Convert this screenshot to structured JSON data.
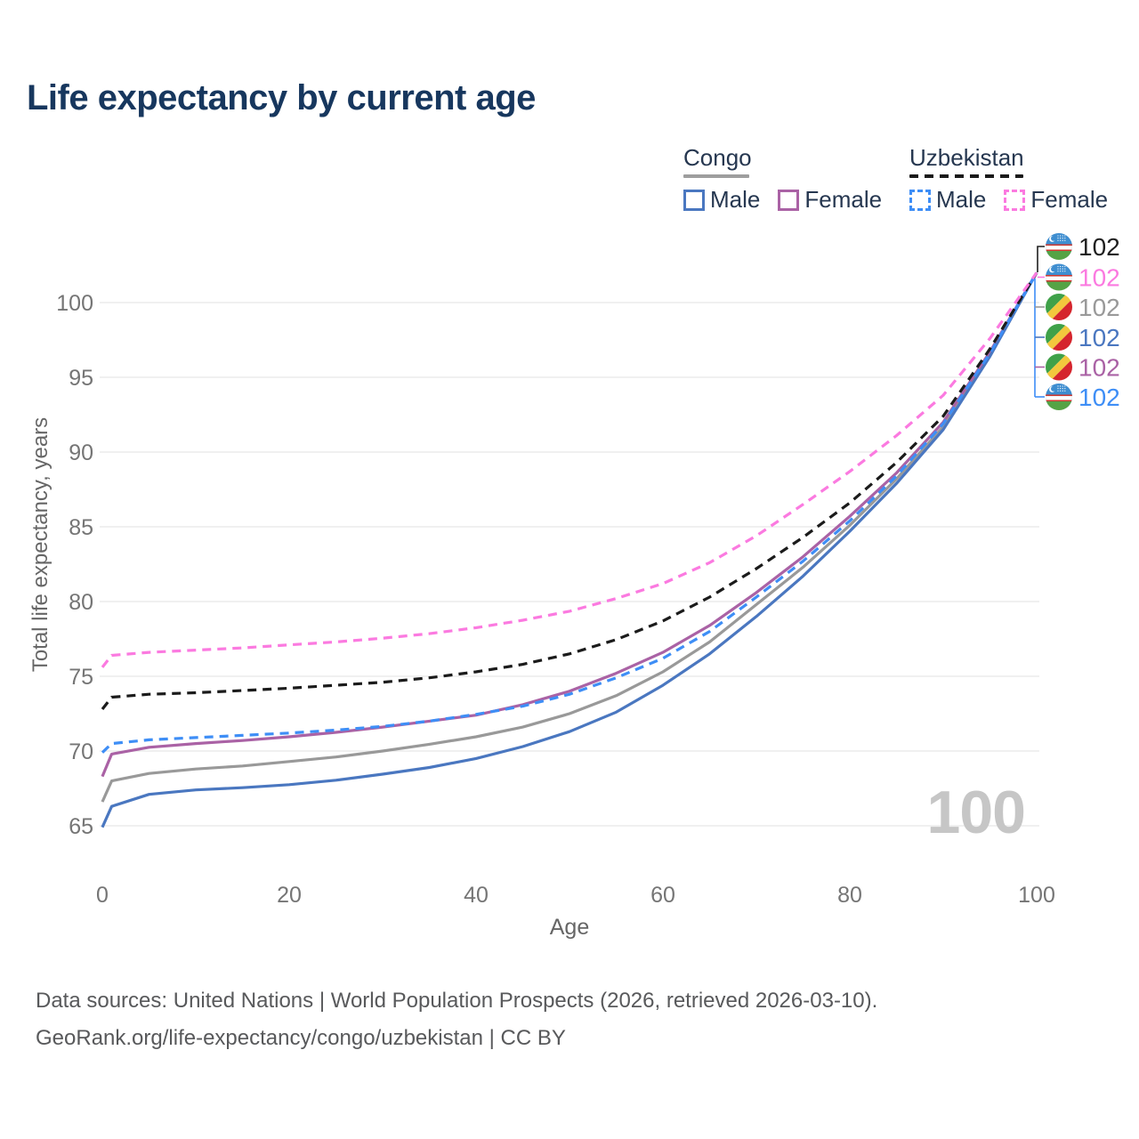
{
  "title": "Life expectancy by current age",
  "legend": {
    "groups": [
      {
        "name": "Congo",
        "line_style": "solid",
        "underline_color": "#9e9e9e",
        "items": [
          {
            "label": "Male",
            "color": "#4a77c0"
          },
          {
            "label": "Female",
            "color": "#aa62a5"
          }
        ]
      },
      {
        "name": "Uzbekistan",
        "line_style": "dashed",
        "underline_color": "#1a1a1a",
        "items": [
          {
            "label": "Male",
            "color": "#3e8ef6"
          },
          {
            "label": "Female",
            "color": "#fb7ae0"
          }
        ]
      }
    ]
  },
  "watermark": "100",
  "footer": {
    "line1": "Data sources: United Nations | World Population Prospects (2026, retrieved 2026-03-10).",
    "line2": "GeoRank.org/life-expectancy/congo/uzbekistan | CC BY"
  },
  "flags": {
    "uz": {
      "icon": "uzbekistan-flag-icon",
      "blue": "#3f8ed0",
      "white": "#ffffff",
      "red": "#d2362c",
      "green": "#55a345"
    },
    "cg": {
      "icon": "congo-flag-icon",
      "green": "#3fa149",
      "yellow": "#f2c83d",
      "red": "#d5252d"
    }
  },
  "chart_data": {
    "type": "line",
    "title": "Life expectancy by current age",
    "xlabel": "Age",
    "ylabel": "Total life expectancy, years",
    "xlim": [
      0,
      100
    ],
    "ylim": [
      65,
      102
    ],
    "x_ticks": [
      0,
      20,
      40,
      60,
      80,
      100
    ],
    "y_ticks": [
      65,
      70,
      75,
      80,
      85,
      90,
      95,
      100
    ],
    "grid": "horizontal-only",
    "grid_color": "#e8e8e8",
    "tick_color": "#757575",
    "x": [
      0,
      1,
      5,
      10,
      15,
      20,
      25,
      30,
      35,
      40,
      45,
      50,
      55,
      60,
      65,
      70,
      75,
      80,
      85,
      90,
      95,
      100
    ],
    "series": [
      {
        "name": "Congo Both sexes",
        "country": "Congo",
        "sex": "Both sexes",
        "color": "#999999",
        "line_style": "solid",
        "flag": "cg",
        "values": [
          66.6,
          68.0,
          68.5,
          68.8,
          69.0,
          69.3,
          69.6,
          70.0,
          70.45,
          70.95,
          71.6,
          72.5,
          73.7,
          75.3,
          77.3,
          79.8,
          82.3,
          85.1,
          88.2,
          91.7,
          96.5,
          102
        ]
      },
      {
        "name": "Congo Female",
        "country": "Congo",
        "sex": "Female",
        "color": "#aa62a5",
        "line_style": "solid",
        "flag": "cg",
        "values": [
          68.3,
          69.8,
          70.25,
          70.5,
          70.7,
          70.95,
          71.25,
          71.6,
          72.0,
          72.4,
          73.1,
          74.0,
          75.2,
          76.6,
          78.4,
          80.6,
          83.0,
          85.7,
          88.6,
          92.0,
          96.7,
          102
        ]
      },
      {
        "name": "Congo Male",
        "country": "Congo",
        "sex": "Male",
        "color": "#4a77c0",
        "line_style": "solid",
        "flag": "cg",
        "values": [
          64.9,
          66.3,
          67.1,
          67.4,
          67.55,
          67.75,
          68.05,
          68.45,
          68.9,
          69.5,
          70.3,
          71.3,
          72.6,
          74.4,
          76.5,
          79.0,
          81.7,
          84.7,
          87.9,
          91.5,
          96.4,
          102
        ]
      },
      {
        "name": "Uzbekistan Male",
        "country": "Uzbekistan",
        "sex": "Male",
        "color": "#3e8ef6",
        "line_style": "dashed",
        "flag": "uz",
        "values": [
          69.9,
          70.5,
          70.75,
          70.9,
          71.05,
          71.2,
          71.4,
          71.65,
          72.0,
          72.45,
          73.0,
          73.8,
          74.9,
          76.2,
          78.0,
          80.3,
          82.7,
          85.4,
          88.4,
          91.9,
          96.6,
          102
        ]
      },
      {
        "name": "Uzbekistan Both sexes",
        "country": "Uzbekistan",
        "sex": "Both sexes",
        "color": "#1b1b1b",
        "line_style": "dashed",
        "flag": "uz",
        "values": [
          72.8,
          73.6,
          73.8,
          73.9,
          74.05,
          74.2,
          74.4,
          74.6,
          74.9,
          75.3,
          75.8,
          76.5,
          77.45,
          78.7,
          80.3,
          82.2,
          84.3,
          86.6,
          89.3,
          92.4,
          96.9,
          102
        ]
      },
      {
        "name": "Uzbekistan Female",
        "country": "Uzbekistan",
        "sex": "Female",
        "color": "#fb7ae0",
        "line_style": "dashed",
        "flag": "uz",
        "values": [
          75.6,
          76.4,
          76.6,
          76.75,
          76.9,
          77.1,
          77.3,
          77.55,
          77.85,
          78.25,
          78.75,
          79.35,
          80.2,
          81.2,
          82.6,
          84.4,
          86.5,
          88.7,
          91.1,
          93.8,
          97.6,
          102
        ]
      }
    ],
    "end_labels": [
      {
        "series": "Uzbekistan Both sexes",
        "flag": "uz",
        "icon": "uzbekistan-flag-icon",
        "text": "102",
        "color": "#1f1f1f"
      },
      {
        "series": "Uzbekistan Female",
        "flag": "uz",
        "icon": "uzbekistan-flag-icon",
        "text": "102",
        "color": "#fb7ae0"
      },
      {
        "series": "Congo Both sexes",
        "flag": "cg",
        "icon": "congo-flag-icon",
        "text": "102",
        "color": "#999999"
      },
      {
        "series": "Congo Male",
        "flag": "cg",
        "icon": "congo-flag-icon",
        "text": "102",
        "color": "#4a77c0"
      },
      {
        "series": "Congo Female",
        "flag": "cg",
        "icon": "congo-flag-icon",
        "text": "102",
        "color": "#aa62a5"
      },
      {
        "series": "Uzbekistan Male",
        "flag": "uz",
        "icon": "uzbekistan-flag-icon",
        "text": "102",
        "color": "#3e8ef6"
      }
    ]
  }
}
